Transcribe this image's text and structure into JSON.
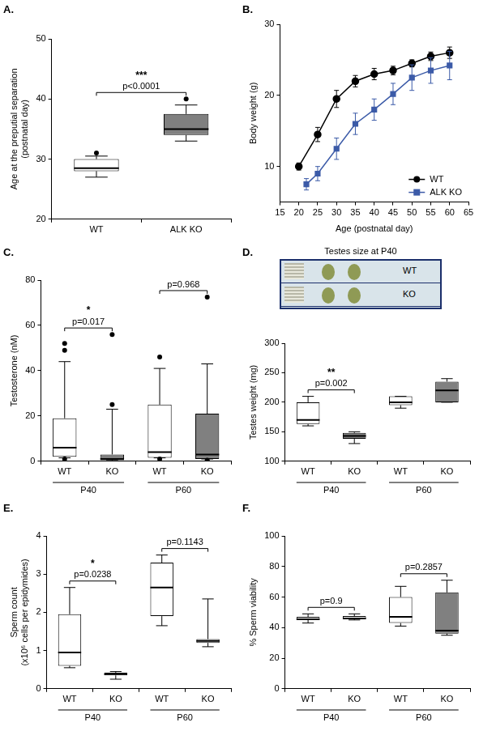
{
  "chart_data": [
    {
      "panel_label": "A.",
      "type": "box",
      "categories": [
        "WT",
        "ALK KO"
      ],
      "ylabel": "Age at the preputial separation (postnatal day)",
      "ylim": [
        20,
        50
      ],
      "yticks": [
        20,
        30,
        40,
        50
      ],
      "grid": false,
      "colors": [
        "#ffffff",
        "#808080"
      ],
      "boxes": [
        {
          "min": 27,
          "q1": 28,
          "median": 28.5,
          "q3": 30,
          "max": 30.5,
          "outliers": [
            31
          ]
        },
        {
          "min": 33,
          "q1": 34,
          "median": 35,
          "q3": 37.5,
          "max": 39,
          "outliers": [
            40
          ]
        }
      ],
      "annotations": [
        {
          "between": [
            0,
            1
          ],
          "stars": "***",
          "text": "p<0.0001"
        }
      ]
    },
    {
      "panel_label": "B.",
      "type": "line",
      "xlabel": "Age (postnatal day)",
      "ylabel": "Body weight (g)",
      "xlim": [
        15,
        65
      ],
      "xticks": [
        15,
        20,
        25,
        30,
        35,
        40,
        45,
        50,
        55,
        60,
        65
      ],
      "ylim": [
        5,
        30
      ],
      "yticks": [
        10,
        20,
        30
      ],
      "grid": false,
      "legend": "lower right",
      "series": [
        {
          "name": "WT",
          "color": "#000000",
          "marker": "circle",
          "x": [
            20,
            25,
            30,
            35,
            40,
            45,
            50,
            55,
            60
          ],
          "values": [
            10,
            14.5,
            19.5,
            22,
            23,
            23.5,
            24.5,
            25.5,
            26
          ],
          "errors": [
            0.5,
            1,
            1.2,
            0.8,
            0.8,
            0.6,
            0.5,
            0.6,
            0.8
          ]
        },
        {
          "name": "ALK KO",
          "color": "#3c5ba8",
          "marker": "square",
          "x": [
            22,
            25,
            30,
            35,
            40,
            45,
            50,
            55,
            60
          ],
          "values": [
            7.5,
            9,
            12.5,
            16,
            18,
            20.2,
            22.5,
            23.5,
            24.2
          ],
          "errors": [
            0.8,
            1,
            1.5,
            1.5,
            1.5,
            1.5,
            1.8,
            1.8,
            2
          ]
        }
      ]
    },
    {
      "panel_label": "C.",
      "type": "box",
      "categories": [
        "WT",
        "KO",
        "WT",
        "KO"
      ],
      "groups": [
        "P40",
        "P60"
      ],
      "ylabel": "Testosterone (nM)",
      "ylim": [
        0,
        80
      ],
      "yticks": [
        0,
        20,
        40,
        60,
        80
      ],
      "grid": false,
      "colors": [
        "#ffffff",
        "#808080",
        "#ffffff",
        "#808080"
      ],
      "boxes": [
        {
          "min": 1.5,
          "q1": 2,
          "median": 6,
          "q3": 19,
          "max": 44,
          "outliers": [
            49,
            52,
            1
          ]
        },
        {
          "min": 0.3,
          "q1": 0.5,
          "median": 1,
          "q3": 3,
          "max": 23,
          "outliers": [
            25,
            56
          ]
        },
        {
          "min": 1.5,
          "q1": 1.5,
          "median": 4,
          "q3": 25,
          "max": 41,
          "outliers": [
            46,
            1
          ]
        },
        {
          "min": 1,
          "q1": 1,
          "median": 3,
          "q3": 21,
          "max": 43,
          "outliers": [
            72.5,
            0.5
          ]
        }
      ],
      "annotations": [
        {
          "between": [
            0,
            1
          ],
          "stars": "*",
          "text": "p=0.017"
        },
        {
          "between": [
            2,
            3
          ],
          "text": "p=0.968"
        }
      ]
    },
    {
      "panel_label": "D.",
      "type": "box",
      "categories": [
        "WT",
        "KO",
        "WT",
        "KO"
      ],
      "groups": [
        "P40",
        "P60"
      ],
      "ylabel": "Testes weight (mg)",
      "ylim": [
        100,
        300
      ],
      "yticks": [
        100,
        150,
        200,
        250,
        300
      ],
      "grid": false,
      "colors": [
        "#ffffff",
        "#808080",
        "#ffffff",
        "#808080"
      ],
      "inset": {
        "title": "Testes size at P40",
        "rows": [
          "WT",
          "KO"
        ]
      },
      "boxes": [
        {
          "min": 160,
          "q1": 163,
          "median": 170,
          "q3": 200,
          "max": 210,
          "outliers": []
        },
        {
          "min": 130,
          "q1": 138,
          "median": 143,
          "q3": 148,
          "max": 150,
          "outliers": []
        },
        {
          "min": 190,
          "q1": 195,
          "median": 200,
          "q3": 210,
          "max": 210,
          "outliers": []
        },
        {
          "min": 200,
          "q1": 200,
          "median": 220,
          "q3": 235,
          "max": 240,
          "outliers": []
        }
      ],
      "annotations": [
        {
          "between": [
            0,
            1
          ],
          "stars": "**",
          "text": "p=0.002"
        }
      ]
    },
    {
      "panel_label": "E.",
      "type": "box",
      "categories": [
        "WT",
        "KO",
        "WT",
        "KO"
      ],
      "groups": [
        "P40",
        "P60"
      ],
      "ylabel": "Sperm count (x10⁶ cells per epidymides)",
      "ylim": [
        0,
        4
      ],
      "yticks": [
        0,
        1,
        2,
        3,
        4
      ],
      "grid": false,
      "colors": [
        "#ffffff",
        "#ffffff",
        "#ffffff",
        "#ffffff"
      ],
      "boxes": [
        {
          "min": 0.55,
          "q1": 0.6,
          "median": 0.95,
          "q3": 1.95,
          "max": 2.65,
          "outliers": []
        },
        {
          "min": 0.25,
          "q1": 0.35,
          "median": 0.38,
          "q3": 0.42,
          "max": 0.45,
          "outliers": []
        },
        {
          "min": 1.65,
          "q1": 1.9,
          "median": 2.65,
          "q3": 3.3,
          "max": 3.5,
          "outliers": []
        },
        {
          "min": 1.1,
          "q1": 1.2,
          "median": 1.25,
          "q3": 1.3,
          "max": 2.35,
          "outliers": []
        }
      ],
      "annotations": [
        {
          "between": [
            0,
            1
          ],
          "stars": "*",
          "text": "p=0.0238"
        },
        {
          "between": [
            2,
            3
          ],
          "text": "p=0.1143"
        }
      ]
    },
    {
      "panel_label": "F.",
      "type": "box",
      "categories": [
        "WT",
        "KO",
        "WT",
        "KO"
      ],
      "groups": [
        "P40",
        "P60"
      ],
      "ylabel": "% Sperm viability",
      "ylim": [
        0,
        100
      ],
      "yticks": [
        0,
        20,
        40,
        60,
        80,
        100
      ],
      "grid": false,
      "colors": [
        "#ffffff",
        "#ffffff",
        "#ffffff",
        "#808080"
      ],
      "boxes": [
        {
          "min": 43,
          "q1": 45,
          "median": 45.5,
          "q3": 47,
          "max": 49,
          "outliers": []
        },
        {
          "min": 45,
          "q1": 45.5,
          "median": 46,
          "q3": 47.5,
          "max": 49,
          "outliers": []
        },
        {
          "min": 41,
          "q1": 43,
          "median": 47,
          "q3": 60,
          "max": 67,
          "outliers": []
        },
        {
          "min": 35,
          "q1": 36,
          "median": 38,
          "q3": 63,
          "max": 71,
          "outliers": []
        }
      ],
      "annotations": [
        {
          "between": [
            0,
            1
          ],
          "text": "p=0.9"
        },
        {
          "between": [
            2,
            3
          ],
          "text": "p=0.2857"
        }
      ]
    }
  ]
}
